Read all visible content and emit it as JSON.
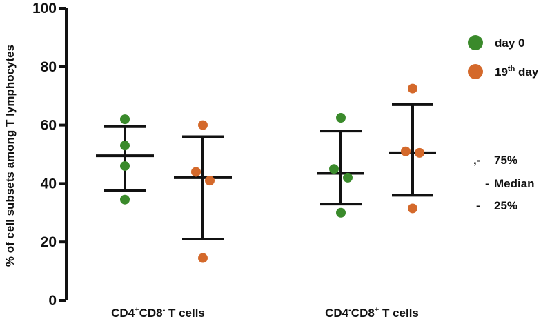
{
  "chart_data": {
    "type": "scatter",
    "ylabel": "% of cell subsets among T lymphocytes",
    "ylim": [
      0,
      100
    ],
    "yticks": [
      "0",
      "20",
      "40",
      "60",
      "80",
      "100"
    ],
    "groups": [
      {
        "label_parts": [
          "CD4",
          "+",
          "CD8",
          "-",
          " T cells"
        ]
      },
      {
        "label_parts": [
          "CD4",
          "-",
          "CD8",
          "+",
          " T cells"
        ]
      }
    ],
    "series": [
      {
        "name": "day 0",
        "name_parts": [
          "day 0",
          ""
        ],
        "color": "#3a8a2b",
        "points": [
          {
            "group": 0,
            "values": [
              62,
              53,
              46,
              34.5
            ]
          },
          {
            "group": 1,
            "values": [
              62.5,
              45,
              42,
              30
            ]
          }
        ],
        "summary": [
          {
            "group": 0,
            "p25": 37.5,
            "median": 49.5,
            "p75": 59.5
          },
          {
            "group": 1,
            "p25": 33,
            "median": 43.5,
            "p75": 58
          }
        ]
      },
      {
        "name": "19th day",
        "name_parts": [
          "19",
          "th",
          " day"
        ],
        "color": "#d4692b",
        "points": [
          {
            "group": 0,
            "values": [
              60,
              44,
              41,
              14.5
            ]
          },
          {
            "group": 1,
            "values": [
              72.5,
              51,
              50.5,
              31.5
            ]
          }
        ],
        "summary": [
          {
            "group": 0,
            "p25": 21,
            "median": 42,
            "p75": 56
          },
          {
            "group": 1,
            "p25": 36,
            "median": 50.5,
            "p75": 67
          }
        ]
      }
    ],
    "key": {
      "p75": "75%",
      "median": "Median",
      "p25": "25%"
    },
    "grid": false,
    "legend_position": "top-right"
  }
}
